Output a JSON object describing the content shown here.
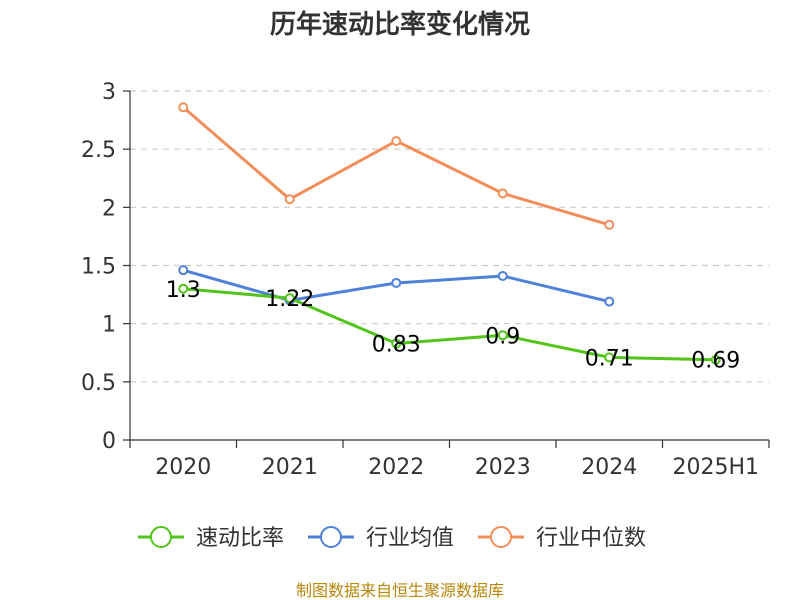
{
  "chart_data": {
    "type": "line",
    "title": "历年速动比率变化情况",
    "categories": [
      "2020",
      "2021",
      "2022",
      "2023",
      "2024",
      "2025H1"
    ],
    "ylim": [
      0,
      3
    ],
    "yticks": [
      "0",
      "0.5",
      "1",
      "1.5",
      "2",
      "2.5",
      "3"
    ],
    "grid": true,
    "legend_position": "bottom",
    "series": [
      {
        "name": "速动比率",
        "color": "#52c41a",
        "values": [
          1.3,
          1.22,
          0.83,
          0.9,
          0.71,
          0.69
        ],
        "labels": [
          "1.3",
          "1.22",
          "0.83",
          "0.9",
          "0.71",
          "0.69"
        ]
      },
      {
        "name": "行业均值",
        "color": "#4f81d9",
        "values": [
          1.46,
          1.2,
          1.35,
          1.41,
          1.19,
          null
        ]
      },
      {
        "name": "行业中位数",
        "color": "#f28e5a",
        "values": [
          2.86,
          2.07,
          2.57,
          2.12,
          1.85,
          null
        ]
      }
    ],
    "source": "制图数据来自恒生聚源数据库"
  }
}
